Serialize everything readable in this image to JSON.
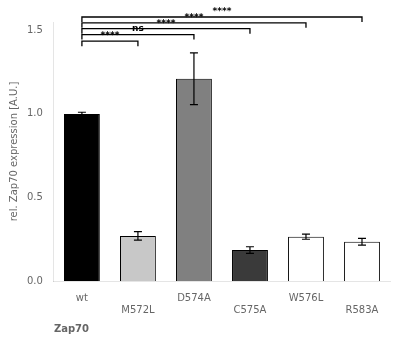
{
  "chart_data": {
    "type": "bar",
    "categories": [
      "wt",
      "M572L",
      "D574A",
      "C575A",
      "W576L",
      "R583A"
    ],
    "values": [
      1.0,
      0.27,
      1.21,
      0.185,
      0.265,
      0.235
    ],
    "errors": [
      0.01,
      0.025,
      0.155,
      0.02,
      0.015,
      0.02
    ],
    "colors": [
      "#000000",
      "#c8c8c8",
      "#808080",
      "#3a3a3a",
      "#ffffff",
      "#ffffff"
    ],
    "ylabel": "rel. Zap70 expression [A.U.]",
    "xlabel": "Zap70",
    "ylim": [
      0,
      1.55
    ],
    "yticks": [
      {
        "value": 0.0,
        "label": "0.0"
      },
      0.5,
      {
        "value": 1.0,
        "label": "1.0"
      },
      1.5
    ],
    "grid": false,
    "annotations": [
      {
        "from": "wt",
        "to": "M572L",
        "y": 1.435,
        "label": "****"
      },
      {
        "from": "wt",
        "to": "D574A",
        "y": 1.475,
        "label": "ns"
      },
      {
        "from": "wt",
        "to": "C575A",
        "y": 1.51,
        "label": "****"
      },
      {
        "from": "wt",
        "to": "W576L",
        "y": 1.545,
        "label": "****"
      },
      {
        "from": "wt",
        "to": "R583A",
        "y": 1.58,
        "label": "****"
      }
    ]
  }
}
